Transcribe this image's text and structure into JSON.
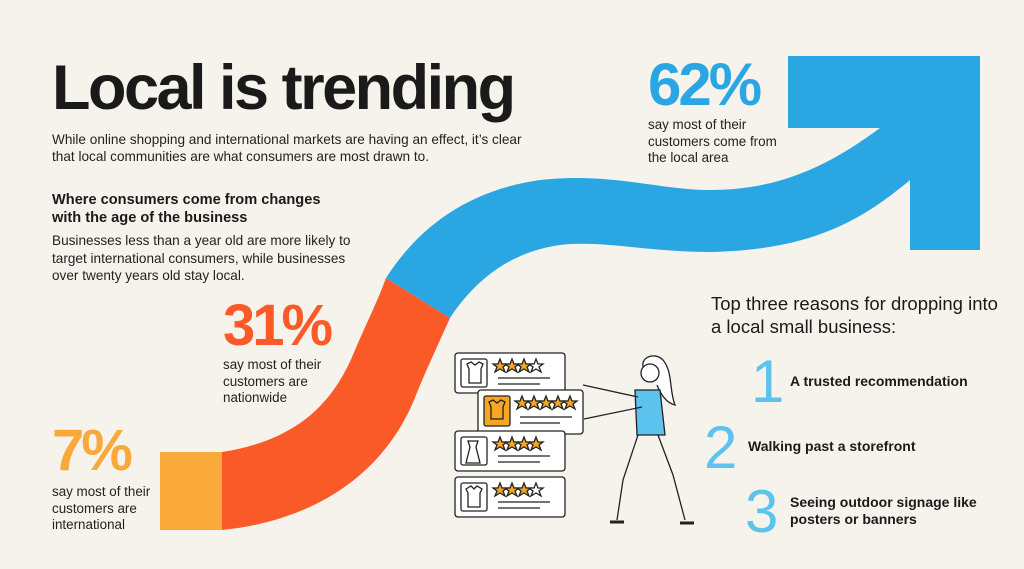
{
  "headline": "Local is trending",
  "intro": "While online shopping and international markets are having an effect, it’s clear that local communities are what consumers are most drawn to.",
  "age_section": {
    "heading": "Where consumers come from changes with the age of the business",
    "body": "Businesses less than a year old are more likely to target international consumers, while businesses over twenty years old stay local."
  },
  "stats": [
    {
      "value": "62%",
      "text": "say most of their customers come from the local area",
      "color": "#2aa7e3"
    },
    {
      "value": "31%",
      "text": "say most of their customers are nationwide",
      "color": "#fa5a28"
    },
    {
      "value": "7%",
      "text": "say most of their customers are international",
      "color": "#f9a83a"
    }
  ],
  "reasons": {
    "title": "Top three reasons for dropping into a local small business:",
    "items": [
      {
        "number": "1",
        "label": "A trusted recommendation"
      },
      {
        "number": "2",
        "label": "Walking past a storefront"
      },
      {
        "number": "3",
        "label": "Seeing outdoor signage like posters or banners"
      }
    ]
  },
  "colors": {
    "background": "#f5f3ec",
    "blue": "#2aa7e3",
    "orange_red": "#fa5a28",
    "orange": "#f9a83a",
    "light_blue_numbers": "#5cc3ef",
    "card_star": "#f5a623"
  },
  "illustration": {
    "description_icons": [
      "shirt-icon",
      "star-icon",
      "person-pushing-card"
    ],
    "card_quote": "“"
  }
}
